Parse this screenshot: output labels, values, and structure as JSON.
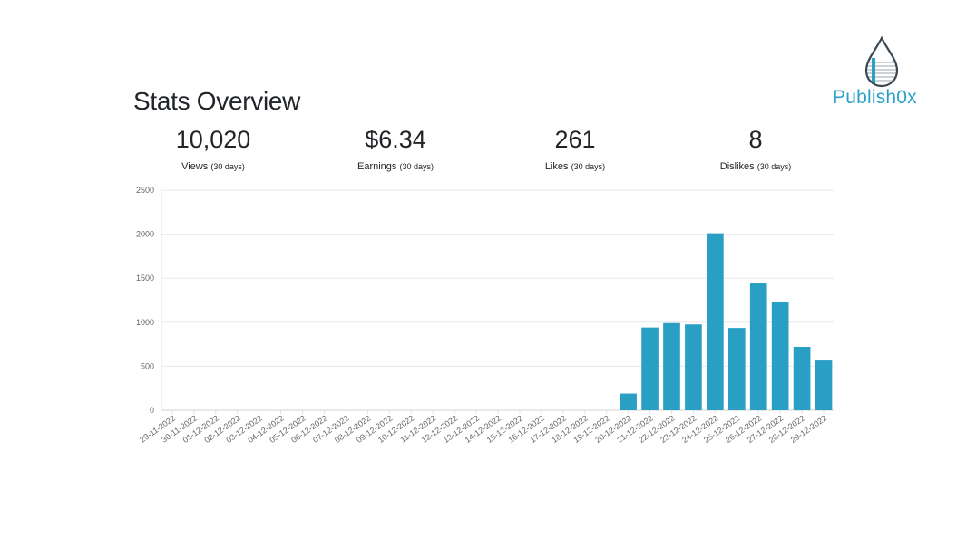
{
  "page": {
    "title": "Stats Overview"
  },
  "brand": {
    "name": "Publish0x",
    "accent": "#2ba0c6"
  },
  "stats": [
    {
      "value": "10,020",
      "label": "Views",
      "period": "(30 days)"
    },
    {
      "value": "$6.34",
      "label": "Earnings",
      "period": "(30 days)"
    },
    {
      "value": "261",
      "label": "Likes",
      "period": "(30 days)"
    },
    {
      "value": "8",
      "label": "Dislikes",
      "period": "(30 days)"
    }
  ],
  "chart_data": {
    "type": "bar",
    "title": "",
    "xlabel": "",
    "ylabel": "",
    "ylim": [
      0,
      2500
    ],
    "yticks": [
      0,
      500,
      1000,
      1500,
      2000,
      2500
    ],
    "grid": true,
    "bar_color": "#2a9fc4",
    "categories": [
      "29-11-2022",
      "30-11-2022",
      "01-12-2022",
      "02-12-2022",
      "03-12-2022",
      "04-12-2022",
      "05-12-2022",
      "06-12-2022",
      "07-12-2022",
      "08-12-2022",
      "09-12-2022",
      "10-12-2022",
      "11-12-2022",
      "12-12-2022",
      "13-12-2022",
      "14-12-2022",
      "15-12-2022",
      "16-12-2022",
      "17-12-2022",
      "18-12-2022",
      "19-12-2022",
      "20-12-2022",
      "21-12-2022",
      "22-12-2022",
      "23-12-2022",
      "24-12-2022",
      "25-12-2022",
      "26-12-2022",
      "27-12-2022",
      "28-12-2022",
      "29-12-2022"
    ],
    "values": [
      0,
      0,
      0,
      0,
      0,
      0,
      0,
      0,
      0,
      0,
      0,
      0,
      0,
      0,
      0,
      0,
      0,
      0,
      0,
      0,
      0,
      190,
      940,
      990,
      975,
      2010,
      935,
      1440,
      1230,
      720,
      565
    ]
  }
}
